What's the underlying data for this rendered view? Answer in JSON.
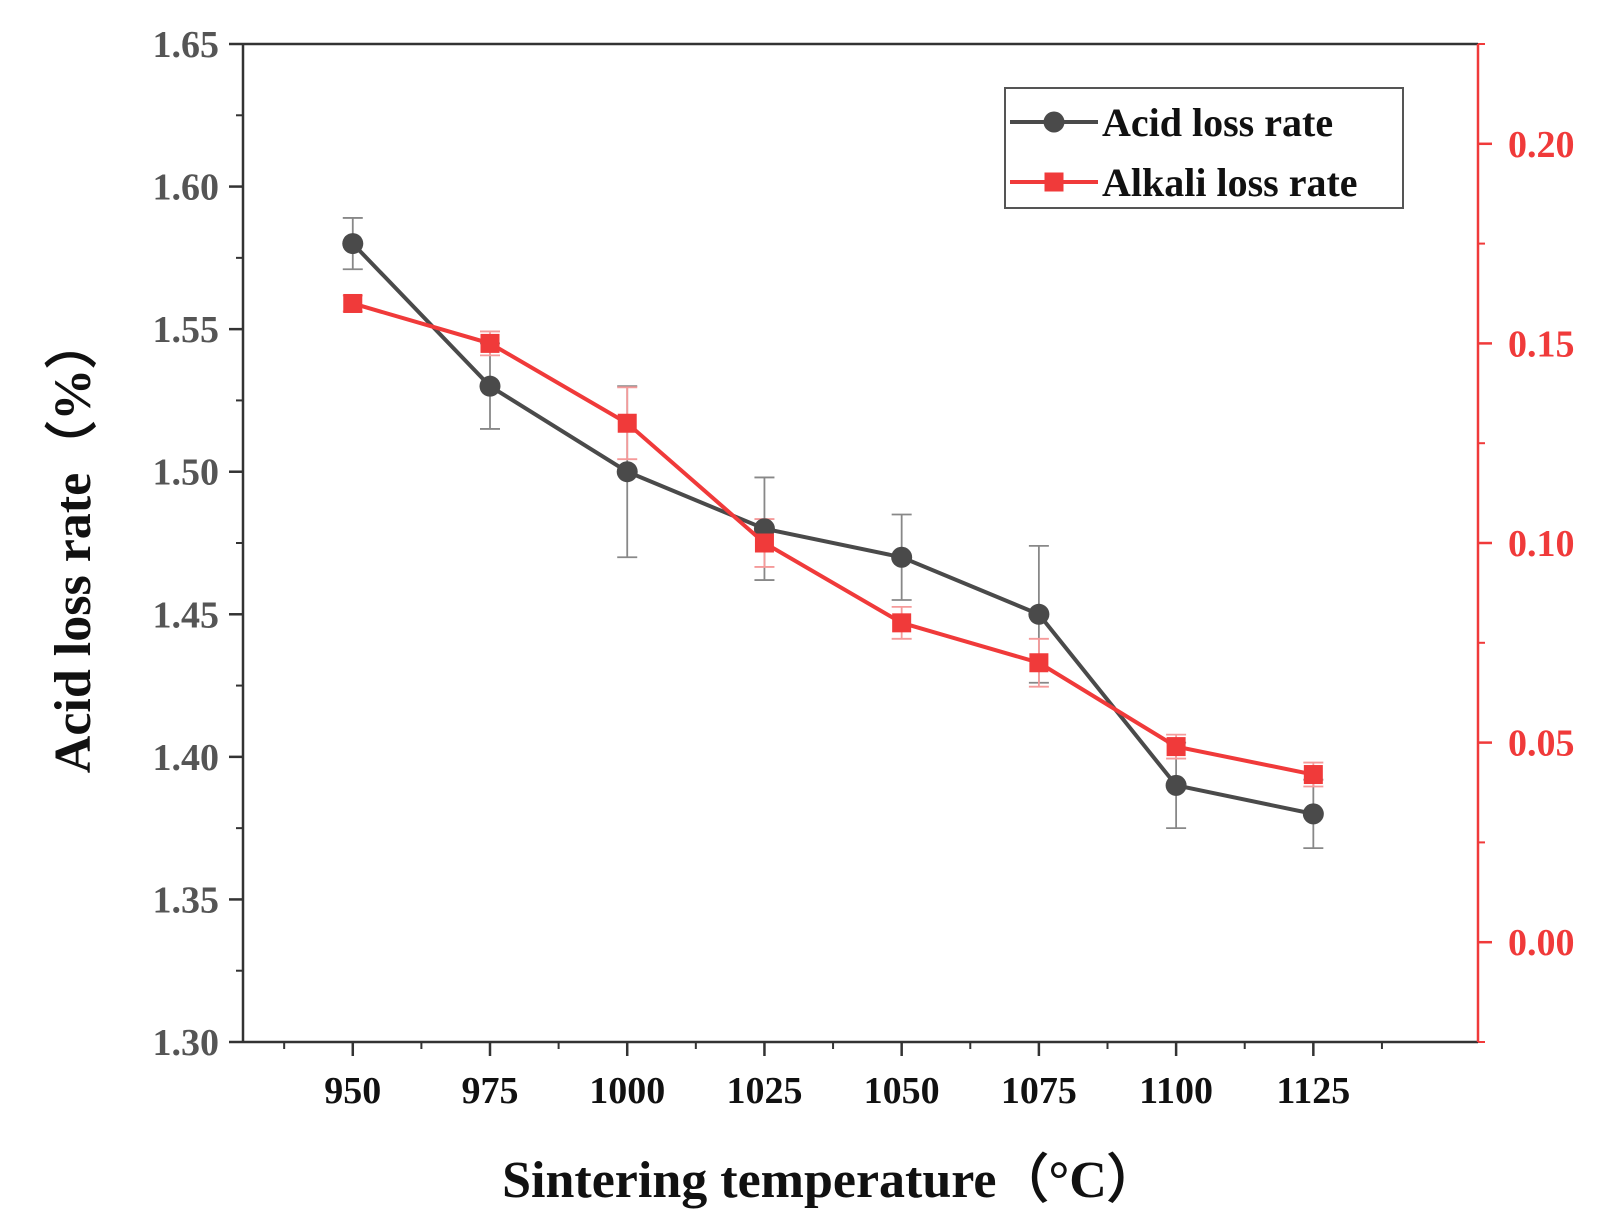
{
  "chart_data": {
    "type": "line",
    "title": "",
    "xlabel": "Sintering temperature（°C）",
    "ylabel": "Acid loss rate（%）",
    "y2label": "",
    "x": [
      950,
      975,
      1000,
      1025,
      1050,
      1075,
      1100,
      1125
    ],
    "xlim": [
      930,
      1155
    ],
    "ylim": [
      1.3,
      1.65
    ],
    "y2lim": [
      -0.025,
      0.225
    ],
    "yticks": [
      "1.30",
      "1.35",
      "1.40",
      "1.45",
      "1.50",
      "1.55",
      "1.60",
      "1.65"
    ],
    "y2ticks": [
      "0.00",
      "0.05",
      "0.10",
      "0.15",
      "0.20"
    ],
    "xticks": [
      "950",
      "975",
      "1000",
      "1025",
      "1050",
      "1075",
      "1100",
      "1125"
    ],
    "legend_position": "top-right",
    "grid": false,
    "series": [
      {
        "name": "Acid loss rate",
        "axis": "left",
        "marker": "circle",
        "color": "#4a4a4a",
        "values": [
          1.58,
          1.53,
          1.5,
          1.48,
          1.47,
          1.45,
          1.39,
          1.38
        ],
        "errors": [
          0.009,
          0.015,
          0.03,
          0.018,
          0.015,
          0.024,
          0.015,
          0.012
        ]
      },
      {
        "name": "Alkali loss rate",
        "axis": "right",
        "marker": "square",
        "color": "#f03a3a",
        "values": [
          0.16,
          0.15,
          0.13,
          0.1,
          0.08,
          0.07,
          0.049,
          0.042
        ],
        "errors": [
          0.002,
          0.003,
          0.009,
          0.006,
          0.004,
          0.006,
          0.003,
          0.003
        ]
      }
    ]
  }
}
